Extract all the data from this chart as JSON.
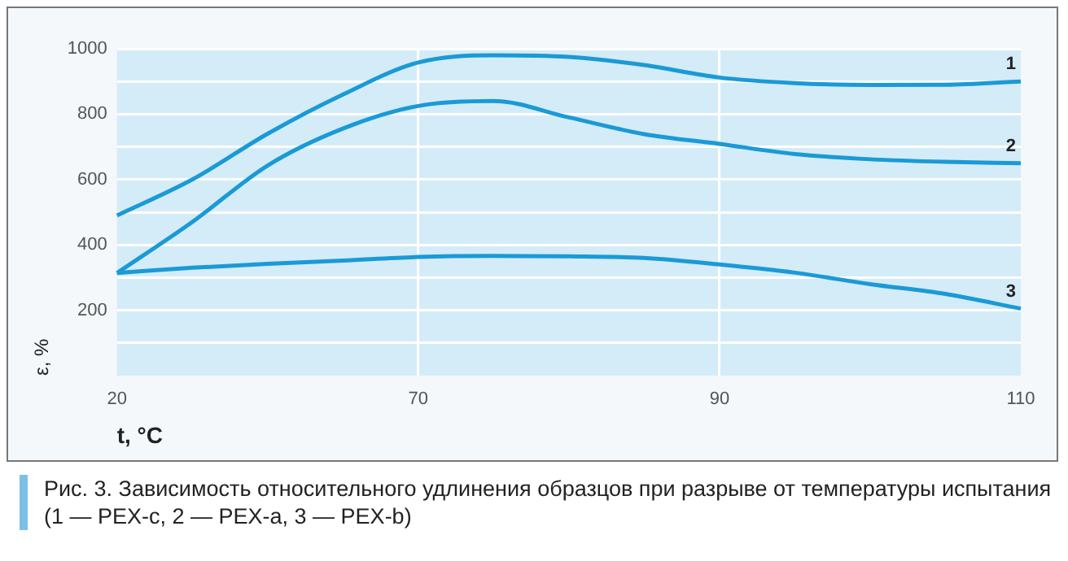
{
  "chart_data": {
    "type": "line",
    "xlabel": "t, °C",
    "ylabel": "ε, %",
    "categories": [
      "20",
      null,
      null,
      null,
      "70",
      null,
      null,
      null,
      "90",
      null,
      null,
      null,
      "110"
    ],
    "series": [
      {
        "color": "#1a9ad6",
        "values": [
          490,
          600,
          740,
          860,
          958,
          980,
          975,
          950,
          912,
          895,
          889,
          890,
          900
        ]
      },
      {
        "color": "#1a9ad6",
        "values": [
          314,
          470,
          643,
          756,
          825,
          840,
          790,
          739,
          709,
          678,
          662,
          654,
          650
        ]
      },
      {
        "color": "#1a9ad6",
        "values": [
          314,
          330,
          342,
          352,
          363,
          366,
          365,
          360,
          340,
          315,
          280,
          250,
          205
        ]
      }
    ],
    "ylim": [
      0,
      1000
    ],
    "yticks": [
      {
        "value": 0,
        "label": null
      },
      {
        "value": 100,
        "label": null
      },
      200,
      {
        "value": 300,
        "label": null
      },
      400,
      {
        "value": 500,
        "label": null
      },
      600,
      {
        "value": 700,
        "label": null
      },
      800,
      {
        "value": 900,
        "label": null
      },
      1000
    ],
    "grid": true,
    "legend": false,
    "marker": "none",
    "line_style": "solid",
    "annotations": [
      {
        "text": "1",
        "x": "110",
        "y": 900
      },
      {
        "text": "2",
        "x": "110",
        "y": 650
      },
      {
        "text": "3",
        "x": "110",
        "y": 205
      },
      "Рис. 3. Зависимость относительного удлинения образцов при разрыве от температуры испытания (1 — PEX-c, 2 — PEX-a, 3 — PEX-b)"
    ]
  }
}
